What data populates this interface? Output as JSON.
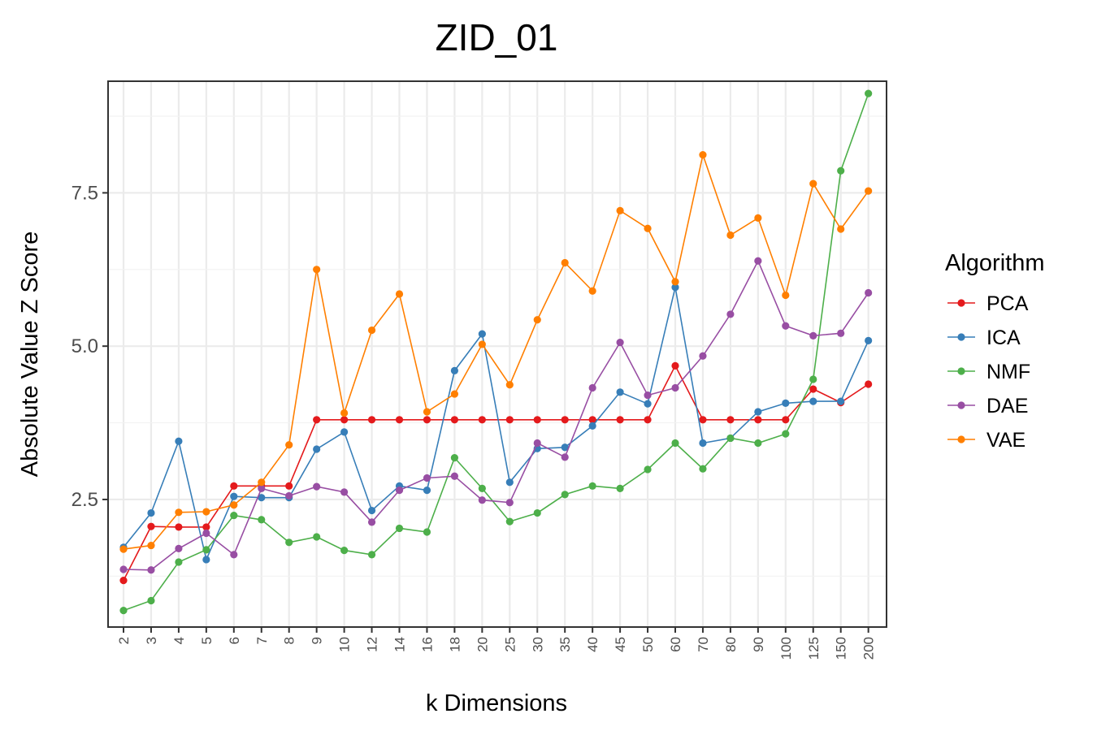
{
  "chart_data": {
    "type": "line",
    "title": "ZID_01",
    "xlabel": "k Dimensions",
    "ylabel": "Absolute Value Z Score",
    "categories": [
      "2",
      "3",
      "4",
      "5",
      "6",
      "7",
      "8",
      "9",
      "10",
      "12",
      "14",
      "16",
      "18",
      "20",
      "25",
      "30",
      "35",
      "40",
      "45",
      "50",
      "60",
      "70",
      "80",
      "90",
      "100",
      "125",
      "150",
      "200"
    ],
    "ylim": [
      0.42,
      9.32
    ],
    "yticks": [
      2.5,
      5.0,
      7.5
    ],
    "ytick_labels": [
      "2.5",
      "5.0",
      "7.5"
    ],
    "grid": true,
    "legend": {
      "title": "Algorithm",
      "placement": "right"
    },
    "series": [
      {
        "name": "PCA",
        "color": "#e41a1c",
        "values": [
          1.18,
          2.06,
          2.05,
          2.05,
          2.72,
          2.72,
          2.72,
          3.8,
          3.8,
          3.8,
          3.8,
          3.8,
          3.8,
          3.8,
          3.8,
          3.8,
          3.8,
          3.8,
          3.8,
          3.8,
          4.68,
          3.8,
          3.8,
          3.8,
          3.8,
          4.3,
          4.08,
          4.38
        ]
      },
      {
        "name": "ICA",
        "color": "#377eb8",
        "values": [
          1.72,
          2.28,
          3.45,
          1.52,
          2.55,
          2.53,
          2.53,
          3.32,
          3.6,
          2.32,
          2.72,
          2.65,
          4.6,
          5.2,
          2.78,
          3.33,
          3.35,
          3.7,
          4.25,
          4.06,
          5.96,
          3.42,
          3.5,
          3.93,
          4.07,
          4.1,
          4.1,
          5.09
        ]
      },
      {
        "name": "NMF",
        "color": "#4daf4a",
        "values": [
          0.69,
          0.85,
          1.48,
          1.68,
          2.24,
          2.17,
          1.8,
          1.89,
          1.67,
          1.6,
          2.03,
          1.97,
          3.18,
          2.68,
          2.14,
          2.28,
          2.58,
          2.72,
          2.68,
          2.99,
          3.42,
          3.0,
          3.5,
          3.42,
          3.57,
          4.46,
          7.86,
          9.12
        ]
      },
      {
        "name": "DAE",
        "color": "#984ea3",
        "values": [
          1.36,
          1.35,
          1.7,
          1.95,
          1.6,
          2.68,
          2.56,
          2.71,
          2.62,
          2.13,
          2.65,
          2.85,
          2.88,
          2.49,
          2.45,
          3.42,
          3.19,
          4.32,
          5.06,
          4.2,
          4.32,
          4.84,
          5.52,
          6.39,
          5.33,
          5.17,
          5.21,
          5.87
        ]
      },
      {
        "name": "VAE",
        "color": "#ff7f00",
        "values": [
          1.69,
          1.75,
          2.29,
          2.3,
          2.41,
          2.78,
          3.39,
          6.25,
          3.91,
          5.26,
          5.85,
          3.93,
          4.22,
          5.03,
          4.37,
          5.43,
          6.36,
          5.9,
          7.21,
          6.92,
          6.05,
          8.12,
          6.81,
          7.09,
          5.83,
          7.65,
          6.91,
          7.53
        ]
      }
    ]
  }
}
